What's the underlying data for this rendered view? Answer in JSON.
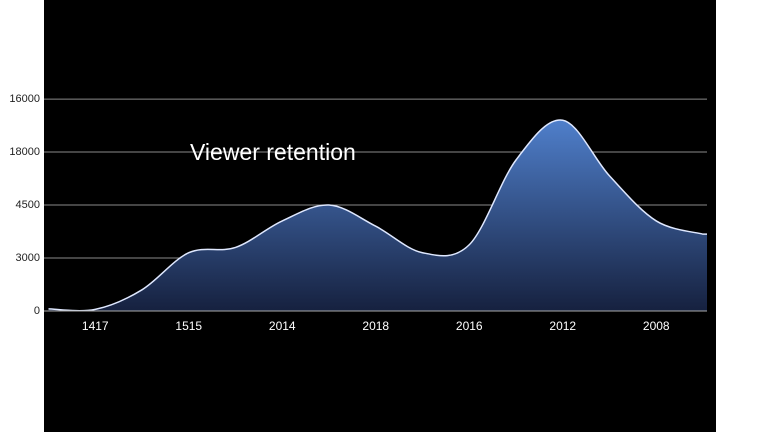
{
  "chart_data": {
    "type": "area",
    "annotation": "Viewer retention",
    "categories": [
      null,
      "1417",
      null,
      "1515",
      null,
      "2014",
      null,
      "2018",
      null,
      "2016",
      null,
      "2012",
      null,
      "2008",
      null
    ],
    "values": [
      0.04,
      0.03,
      0.4,
      1.1,
      1.2,
      1.7,
      2.0,
      1.6,
      1.1,
      1.25,
      2.85,
      3.6,
      2.55,
      1.7,
      1.45
    ],
    "color": "#4a78c0",
    "ylim": [
      0,
      5.87
    ],
    "yticks": [
      {
        "value": 0,
        "label": "0"
      },
      {
        "value": 1,
        "label": "3000"
      },
      {
        "value": 2,
        "label": "4500"
      },
      {
        "value": 3,
        "label": "18000"
      },
      {
        "value": 4,
        "label": "16000"
      }
    ],
    "grid": true
  }
}
